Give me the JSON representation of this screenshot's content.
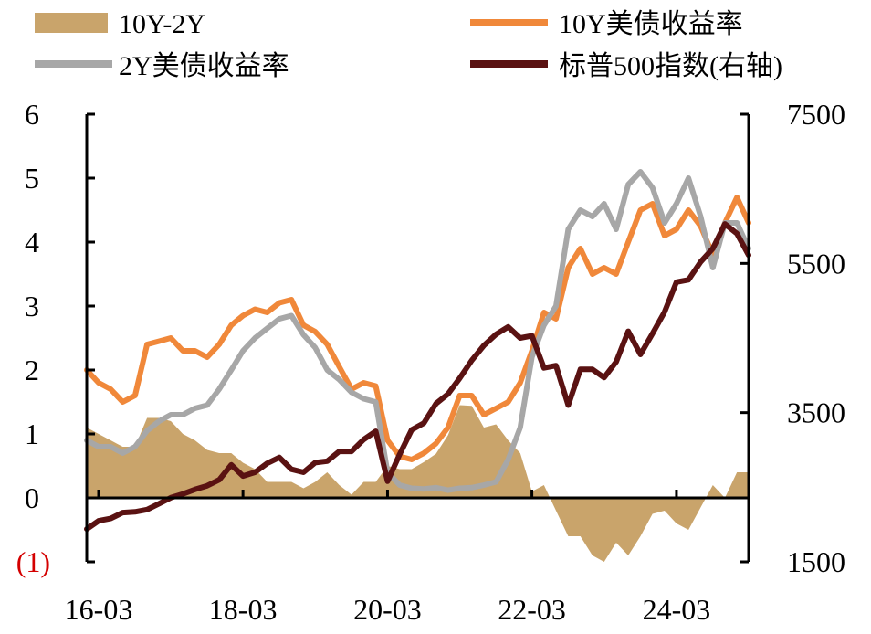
{
  "chart_data": {
    "type": "line",
    "title": "",
    "xlabel": "",
    "ylabel": "",
    "y2label": "",
    "x_ticks": [
      "16-03",
      "18-03",
      "20-03",
      "22-03",
      "24-03"
    ],
    "ylim": [
      -1,
      6
    ],
    "y_ticks": [
      "0",
      "1",
      "2",
      "3",
      "4",
      "5",
      "6"
    ],
    "y_neg_label": "(1)",
    "y2lim": [
      1500,
      7500
    ],
    "y2_ticks": [
      "1500",
      "3500",
      "5500",
      "7500"
    ],
    "grid": false,
    "legend_position": "top",
    "legend": [
      {
        "key": "spread",
        "label": "10Y-2Y"
      },
      {
        "key": "y10",
        "label": "10Y美债收益率"
      },
      {
        "key": "y2",
        "label": "2Y美债收益率"
      },
      {
        "key": "spx",
        "label": "标普500指数(右轴)"
      }
    ],
    "dates": [
      "2016-01",
      "2016-03",
      "2016-05",
      "2016-07",
      "2016-09",
      "2016-11",
      "2017-01",
      "2017-03",
      "2017-05",
      "2017-07",
      "2017-09",
      "2017-11",
      "2018-01",
      "2018-03",
      "2018-05",
      "2018-07",
      "2018-09",
      "2018-11",
      "2019-01",
      "2019-03",
      "2019-05",
      "2019-07",
      "2019-09",
      "2019-11",
      "2020-01",
      "2020-03",
      "2020-05",
      "2020-07",
      "2020-09",
      "2020-11",
      "2021-01",
      "2021-03",
      "2021-05",
      "2021-07",
      "2021-09",
      "2021-11",
      "2022-01",
      "2022-03",
      "2022-05",
      "2022-07",
      "2022-09",
      "2022-11",
      "2023-01",
      "2023-03",
      "2023-05",
      "2023-07",
      "2023-09",
      "2023-11",
      "2024-01",
      "2024-03",
      "2024-05",
      "2024-07",
      "2024-09",
      "2024-11",
      "2025-01",
      "2025-03"
    ],
    "series": [
      {
        "key": "y10",
        "axis": "left",
        "type": "line",
        "color": "#f0883a",
        "values": [
          2.0,
          1.8,
          1.7,
          1.5,
          1.6,
          2.4,
          2.45,
          2.5,
          2.3,
          2.3,
          2.2,
          2.4,
          2.7,
          2.85,
          2.95,
          2.9,
          3.05,
          3.1,
          2.7,
          2.6,
          2.4,
          2.05,
          1.7,
          1.8,
          1.75,
          0.9,
          0.65,
          0.6,
          0.7,
          0.85,
          1.1,
          1.6,
          1.6,
          1.3,
          1.4,
          1.5,
          1.8,
          2.3,
          2.9,
          2.8,
          3.6,
          3.9,
          3.5,
          3.6,
          3.5,
          4.0,
          4.5,
          4.6,
          4.1,
          4.2,
          4.5,
          4.25,
          3.8,
          4.3,
          4.7,
          4.3
        ]
      },
      {
        "key": "y2",
        "axis": "left",
        "type": "line",
        "color": "#a7a7a7",
        "values": [
          0.9,
          0.8,
          0.8,
          0.7,
          0.8,
          1.05,
          1.2,
          1.3,
          1.3,
          1.4,
          1.45,
          1.7,
          2.0,
          2.3,
          2.5,
          2.65,
          2.8,
          2.85,
          2.55,
          2.35,
          2.0,
          1.85,
          1.65,
          1.55,
          1.5,
          0.4,
          0.2,
          0.15,
          0.14,
          0.16,
          0.12,
          0.15,
          0.16,
          0.2,
          0.25,
          0.6,
          1.1,
          2.2,
          2.7,
          3.0,
          4.2,
          4.5,
          4.4,
          4.6,
          4.2,
          4.9,
          5.1,
          4.85,
          4.3,
          4.6,
          5.0,
          4.4,
          3.6,
          4.3,
          4.3,
          3.9
        ]
      },
      {
        "key": "spread",
        "axis": "left",
        "type": "area",
        "color": "#c9a46b",
        "values": [
          1.1,
          1.0,
          0.9,
          0.8,
          0.8,
          1.25,
          1.25,
          1.2,
          1.0,
          0.9,
          0.75,
          0.7,
          0.7,
          0.55,
          0.45,
          0.25,
          0.25,
          0.25,
          0.15,
          0.25,
          0.4,
          0.2,
          0.05,
          0.25,
          0.25,
          0.5,
          0.45,
          0.45,
          0.56,
          0.69,
          0.98,
          1.45,
          1.44,
          1.1,
          1.15,
          0.9,
          0.7,
          0.1,
          0.2,
          -0.2,
          -0.6,
          -0.6,
          -0.9,
          -1.0,
          -0.7,
          -0.9,
          -0.6,
          -0.25,
          -0.2,
          -0.4,
          -0.5,
          -0.15,
          0.2,
          0.0,
          0.4,
          0.4
        ]
      },
      {
        "key": "spx",
        "axis": "right",
        "type": "line",
        "color": "#5a1212",
        "values": [
          1940,
          2050,
          2080,
          2160,
          2170,
          2200,
          2280,
          2360,
          2410,
          2470,
          2520,
          2600,
          2800,
          2650,
          2700,
          2820,
          2900,
          2740,
          2700,
          2830,
          2850,
          2980,
          2980,
          3140,
          3250,
          2580,
          2940,
          3270,
          3360,
          3620,
          3750,
          3960,
          4200,
          4400,
          4550,
          4650,
          4500,
          4530,
          4100,
          4130,
          3600,
          4080,
          4080,
          3970,
          4180,
          4590,
          4280,
          4560,
          4850,
          5250,
          5280,
          5520,
          5700,
          6030,
          5900,
          5610
        ]
      }
    ]
  }
}
